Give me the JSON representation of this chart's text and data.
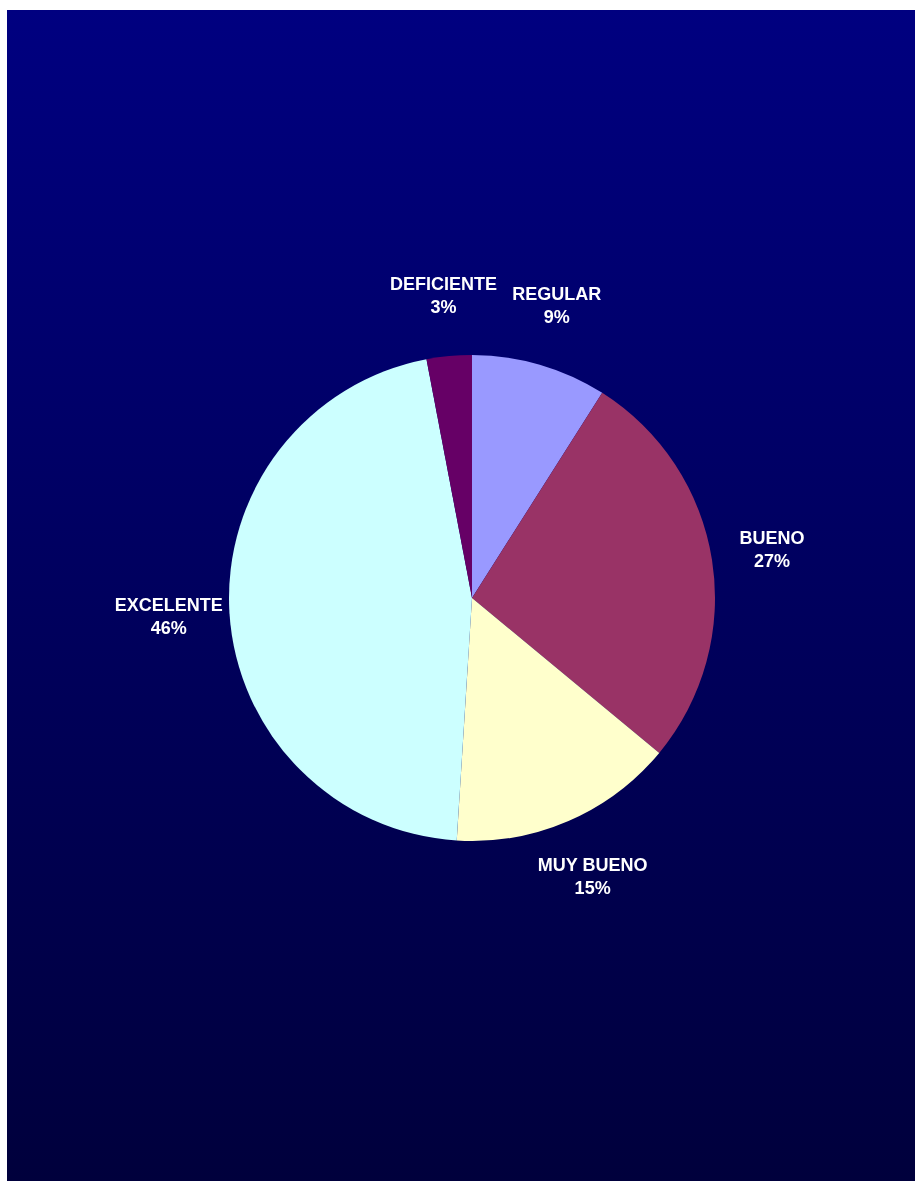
{
  "chart_data": {
    "type": "pie",
    "categories": [
      "REGULAR",
      "BUENO",
      "MUY BUENO",
      "EXCELENTE",
      "DEFICIENTE"
    ],
    "values": [
      9,
      27,
      15,
      46,
      3
    ],
    "value_labels": [
      "9%",
      "27%",
      "15%",
      "46%",
      "3%"
    ],
    "colors": [
      "#9999ff",
      "#993366",
      "#ffffcc",
      "#ccffff",
      "#660066"
    ],
    "legend": false
  }
}
